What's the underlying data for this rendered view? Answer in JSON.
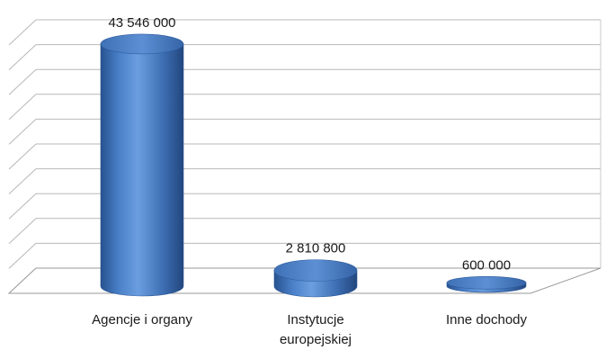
{
  "chart_data": {
    "type": "bar",
    "style": "3d-cylinder",
    "categories": [
      "Agencje i organy",
      "Instytucje europejskiej",
      "Inne dochody"
    ],
    "category_lines": [
      [
        "Agencje i organy"
      ],
      [
        "Instytucje",
        "europejskiej"
      ],
      [
        "Inne dochody"
      ]
    ],
    "values": [
      43546000,
      2810800,
      600000
    ],
    "data_labels": [
      "43 546 000",
      "2 810 800",
      "600 000"
    ],
    "ylim": [
      0,
      45000000
    ],
    "grid": true,
    "legend": "none",
    "bar_color": "#3d6fb5"
  }
}
